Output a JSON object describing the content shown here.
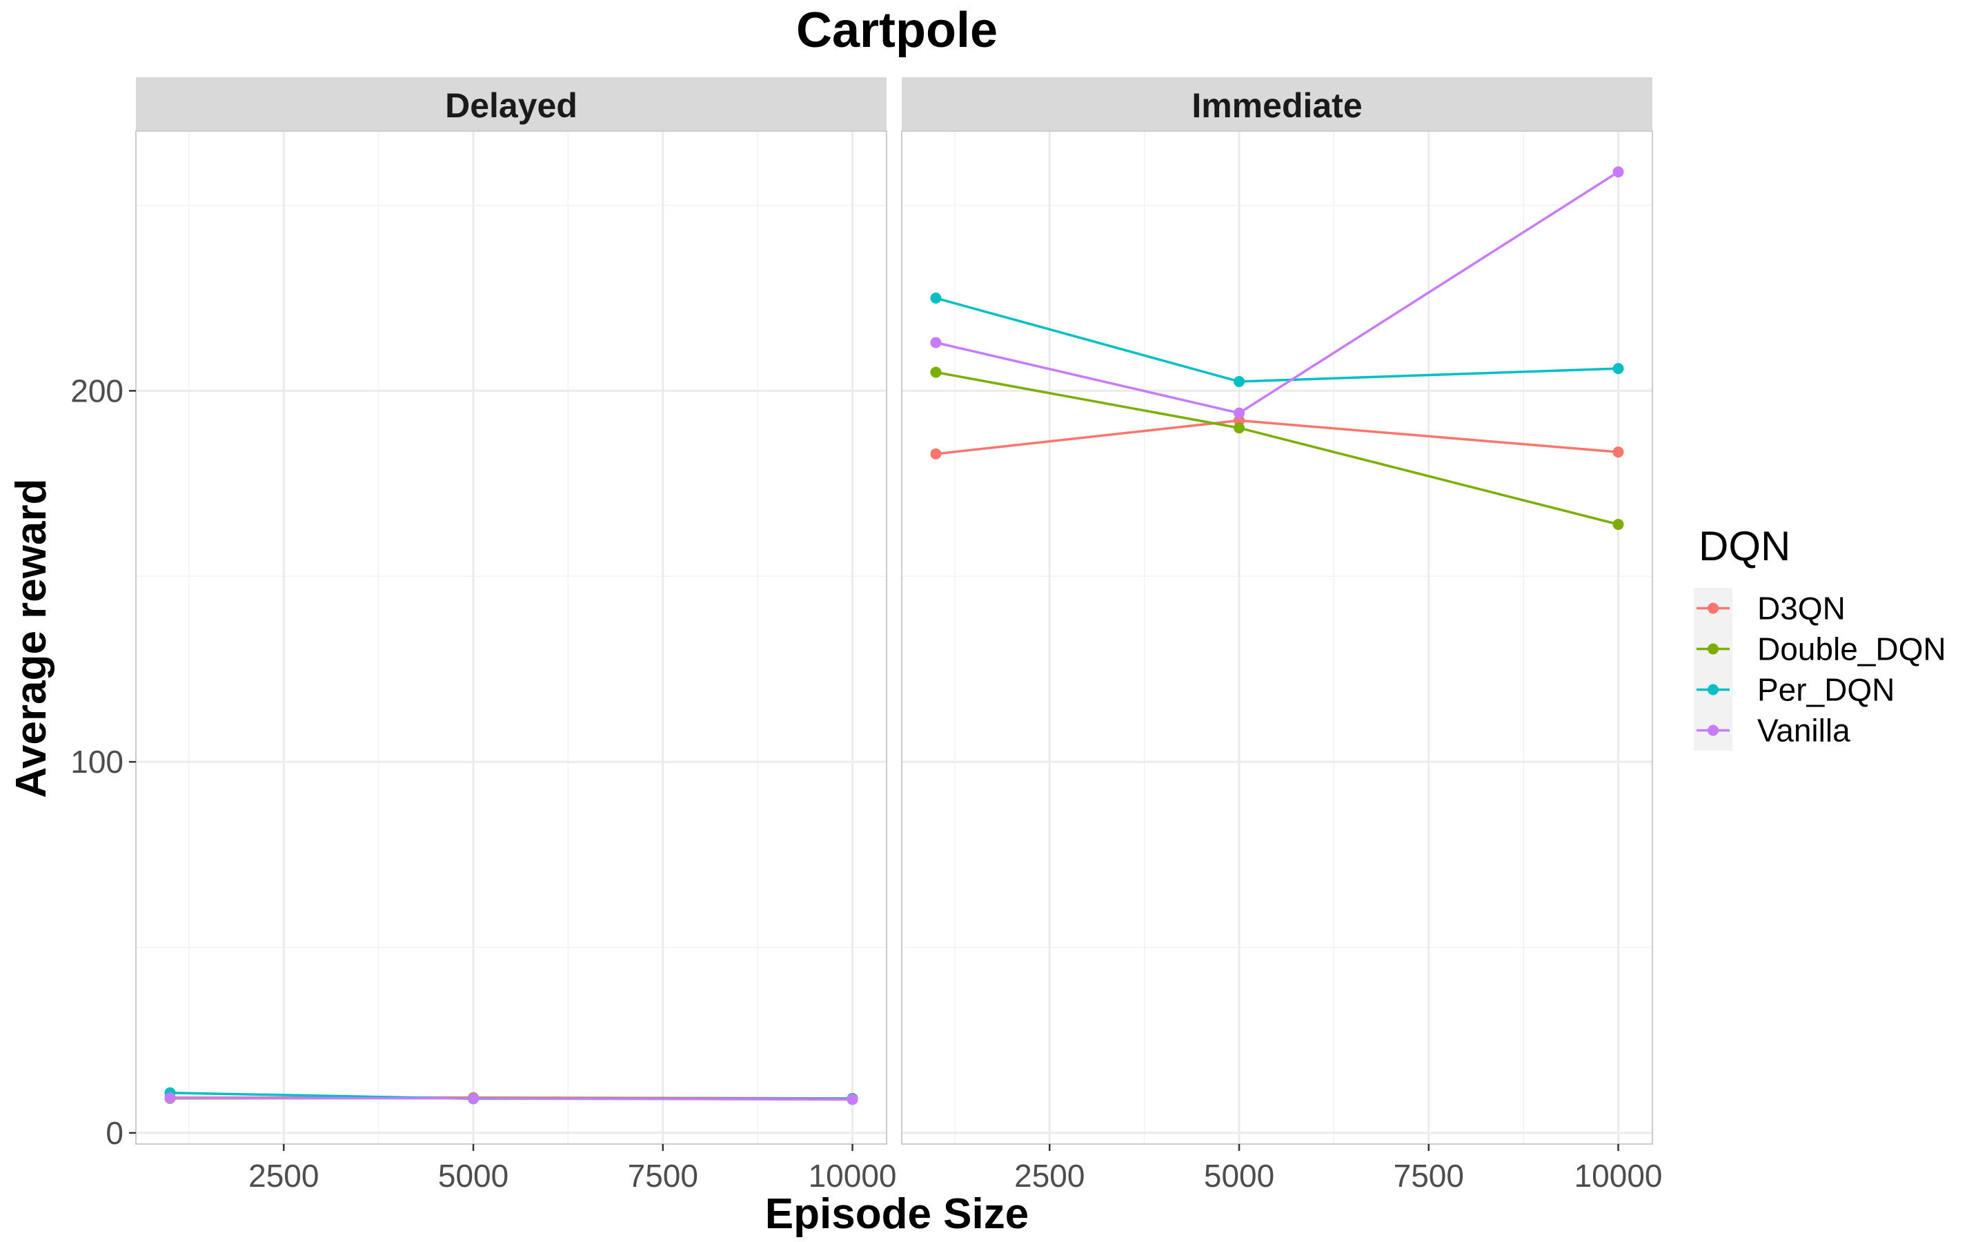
{
  "chart_data": {
    "type": "line",
    "title": "Cartpole",
    "xlabel": "Episode Size",
    "ylabel": "Average reward",
    "xlim": [
      550,
      10450
    ],
    "ylim": [
      -3,
      270
    ],
    "x_ticks": [
      2500,
      5000,
      7500,
      10000
    ],
    "x_tick_labels": [
      "2500",
      "5000",
      "7500",
      "10000"
    ],
    "y_ticks": [
      0,
      100,
      200
    ],
    "y_tick_labels": [
      "0",
      "100",
      "200"
    ],
    "legend": {
      "title": "DQN",
      "position": "right"
    },
    "grid": true,
    "x": [
      1000,
      5000,
      10000
    ],
    "facets": [
      {
        "label": "Delayed",
        "series": [
          {
            "name": "D3QN",
            "color": "#F8766D",
            "values": [
              9.5,
              9.5,
              9.3
            ]
          },
          {
            "name": "Double_DQN",
            "color": "#7CAE00",
            "values": [
              9.3,
              9.4,
              9.2
            ]
          },
          {
            "name": "Per_DQN",
            "color": "#00BFC4",
            "values": [
              10.8,
              9.2,
              9.2
            ]
          },
          {
            "name": "Vanilla",
            "color": "#C77CFF",
            "values": [
              9.4,
              9.3,
              9.0
            ]
          }
        ]
      },
      {
        "label": "Immediate",
        "series": [
          {
            "name": "D3QN",
            "color": "#F8766D",
            "values": [
              183,
              192,
              183.5
            ]
          },
          {
            "name": "Double_DQN",
            "color": "#7CAE00",
            "values": [
              205,
              190,
              164
            ]
          },
          {
            "name": "Per_DQN",
            "color": "#00BFC4",
            "values": [
              225,
              202.5,
              206
            ]
          },
          {
            "name": "Vanilla",
            "color": "#C77CFF",
            "values": [
              213,
              194,
              259
            ]
          }
        ]
      }
    ]
  }
}
